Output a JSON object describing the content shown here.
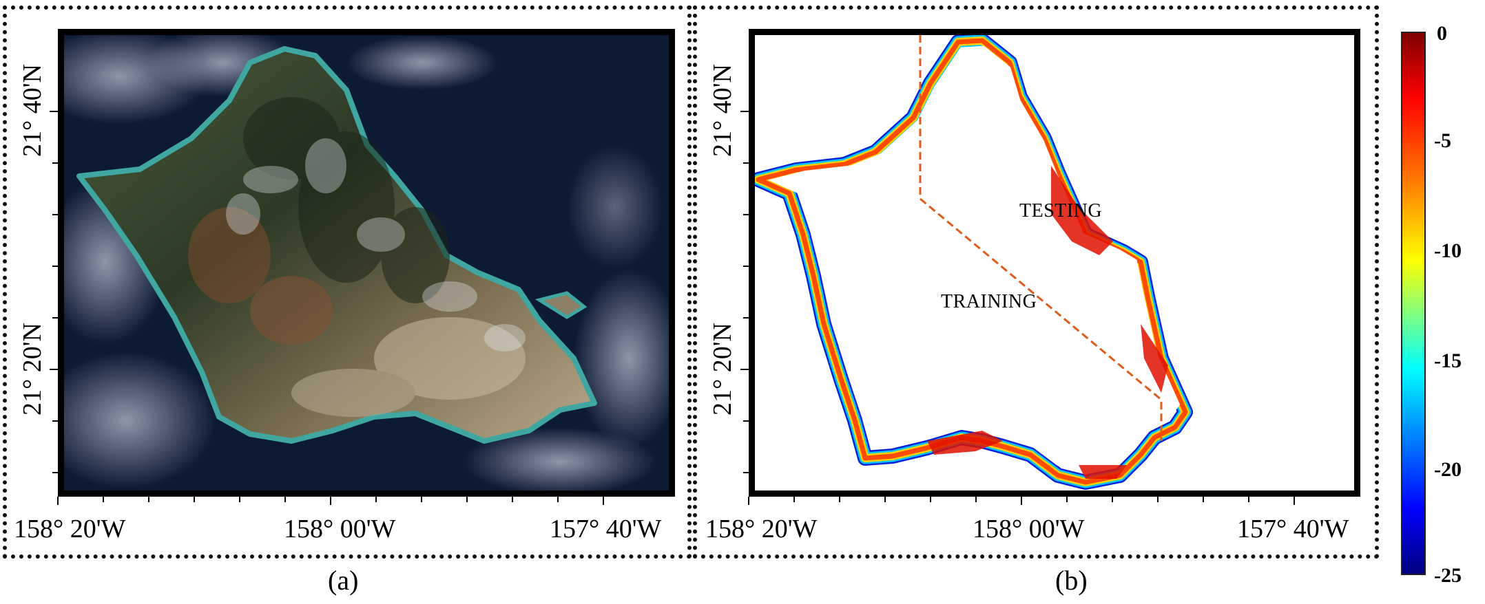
{
  "panels": {
    "a": {
      "caption": "(a)",
      "x_ticks": [
        "158°  20'W",
        "158°  00'W",
        "157°  40'W"
      ],
      "y_ticks": [
        "21°  40'N",
        "21°  20'N"
      ]
    },
    "b": {
      "caption": "(b)",
      "x_ticks": [
        "158°  20'W",
        "158°  00'W",
        "157°  40'W"
      ],
      "y_ticks": [
        "21°  40'N",
        "21°  20'N"
      ],
      "region_labels": {
        "training": "TRAINING",
        "testing": "TESTING"
      },
      "split_line_color": "#e05a1a"
    }
  },
  "colorbar": {
    "ticks": [
      "0",
      "-5",
      "-10",
      "-15",
      "-20",
      "-25"
    ],
    "range": [
      0,
      -25
    ],
    "colormap": [
      "#7f0000",
      "#ff0000",
      "#ff8000",
      "#ffff00",
      "#80ff80",
      "#00ffff",
      "#0080ff",
      "#0000ff",
      "#00007f"
    ]
  },
  "colors": {
    "ocean": "#0d1a33",
    "land_green": "#3f5436",
    "land_tan": "#9c8a6c",
    "cloud": "#c9ccd6",
    "shallow_water": "#3fa7a0"
  }
}
